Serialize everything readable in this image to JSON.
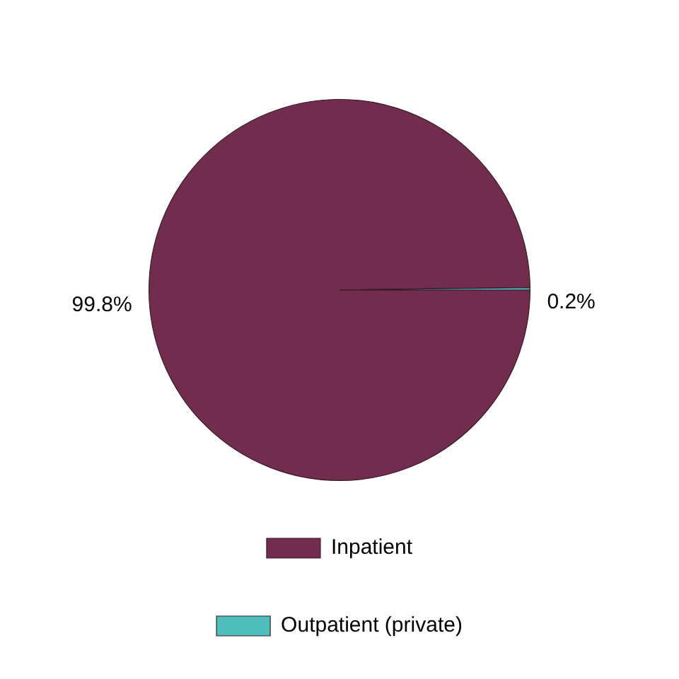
{
  "chart_data": {
    "type": "pie",
    "categories": [
      "Inpatient",
      "Outpatient (private)"
    ],
    "values": [
      99.8,
      0.2
    ],
    "value_labels": [
      "99.8%",
      "0.2%"
    ],
    "colors": [
      "#722d4e",
      "#4dbfba"
    ],
    "legend": "bottom"
  }
}
